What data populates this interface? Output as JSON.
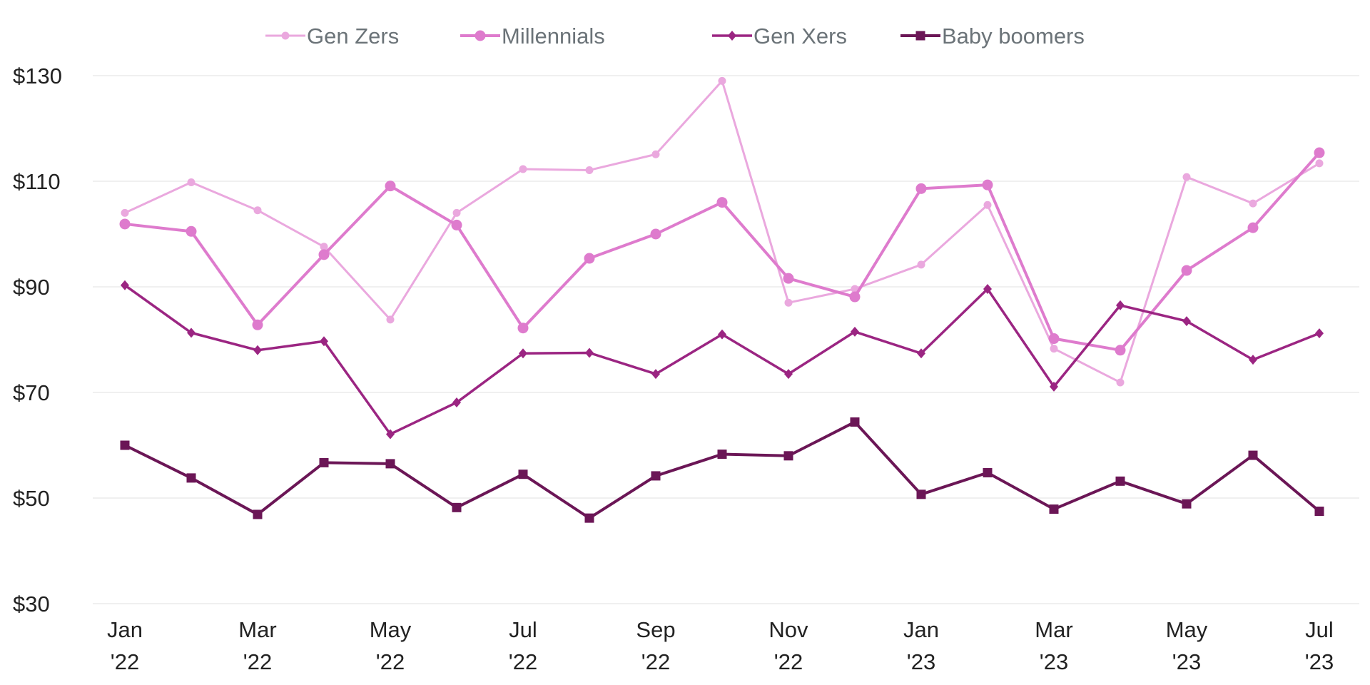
{
  "chart_data": {
    "type": "line",
    "title": "",
    "xlabel": "",
    "ylabel": "",
    "ylim": [
      30,
      130
    ],
    "yticks": [
      30,
      50,
      70,
      90,
      110,
      130
    ],
    "ytick_labels": [
      "$30",
      "$50",
      "$70",
      "$90",
      "$110",
      "$130"
    ],
    "grid": true,
    "legend_position": "top-center",
    "x": [
      "Jan '22",
      "Feb '22",
      "Mar '22",
      "Apr '22",
      "May '22",
      "Jun '22",
      "Jul '22",
      "Aug '22",
      "Sep '22",
      "Oct '22",
      "Nov '22",
      "Dec '22",
      "Jan '23",
      "Feb '23",
      "Mar '23",
      "Apr '23",
      "May '23",
      "Jun '23",
      "Jul '23"
    ],
    "xtick_labels": [
      {
        "index": 0,
        "line1": "Jan",
        "line2": "'22"
      },
      {
        "index": 2,
        "line1": "Mar",
        "line2": "'22"
      },
      {
        "index": 4,
        "line1": "May",
        "line2": "'22"
      },
      {
        "index": 6,
        "line1": "Jul",
        "line2": "'22"
      },
      {
        "index": 8,
        "line1": "Sep",
        "line2": "'22"
      },
      {
        "index": 10,
        "line1": "Nov",
        "line2": "'22"
      },
      {
        "index": 12,
        "line1": "Jan",
        "line2": "'23"
      },
      {
        "index": 14,
        "line1": "Mar",
        "line2": "'23"
      },
      {
        "index": 16,
        "line1": "May",
        "line2": "'23"
      },
      {
        "index": 18,
        "line1": "Jul",
        "line2": "'23"
      }
    ],
    "series": [
      {
        "name": "Gen Zers",
        "color": "#EAA8DE",
        "marker": "circle-small",
        "values": [
          104,
          109.8,
          104.5,
          97.6,
          83.8,
          104,
          112.3,
          112.1,
          115.1,
          129,
          87,
          89.6,
          94.2,
          105.5,
          78.3,
          71.9,
          110.8,
          105.8,
          113.4
        ]
      },
      {
        "name": "Millennials",
        "color": "#DE7BCD",
        "marker": "circle",
        "values": [
          101.9,
          100.5,
          82.8,
          96.1,
          109.1,
          101.7,
          82.2,
          95.4,
          100,
          106,
          91.6,
          88.1,
          108.6,
          109.3,
          80.2,
          78,
          93.1,
          101.2,
          115.4
        ]
      },
      {
        "name": "Gen Xers",
        "color": "#9B2582",
        "marker": "diamond",
        "values": [
          90.3,
          81.3,
          78,
          79.7,
          62.1,
          68.1,
          77.4,
          77.5,
          73.5,
          81,
          73.5,
          81.5,
          77.4,
          89.6,
          71.1,
          86.5,
          83.5,
          76.2,
          81.2
        ]
      },
      {
        "name": "Baby boomers",
        "color": "#6B1656",
        "marker": "square",
        "values": [
          60,
          53.8,
          46.9,
          56.7,
          56.5,
          48.2,
          54.5,
          46.2,
          54.2,
          58.3,
          58,
          64.4,
          50.7,
          54.8,
          47.9,
          53.2,
          48.9,
          58.1,
          47.5
        ]
      }
    ]
  }
}
